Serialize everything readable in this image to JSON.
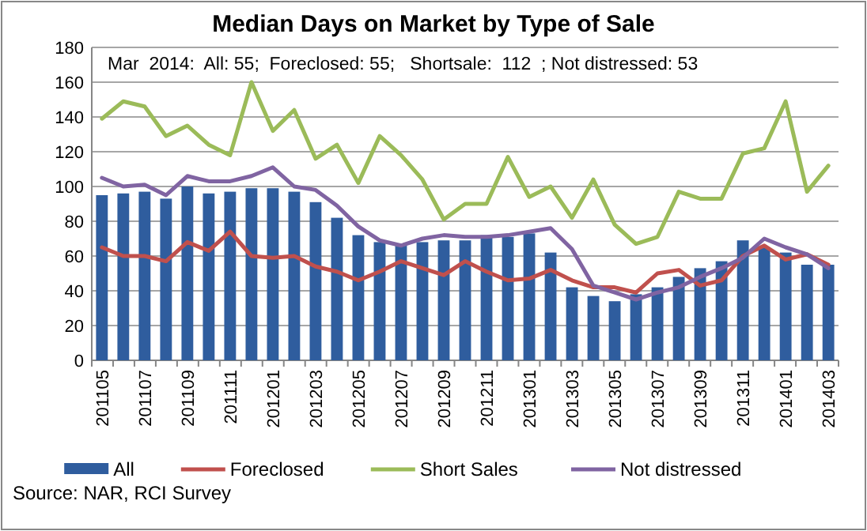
{
  "chart_data": {
    "type": "bar",
    "title": "Median Days on Market by Type of Sale",
    "categories": [
      "201105",
      null,
      "201107",
      null,
      "201109",
      null,
      "201111",
      null,
      "201201",
      null,
      "201203",
      null,
      "201205",
      null,
      "201207",
      null,
      "201209",
      null,
      "201211",
      null,
      "201301",
      null,
      "201303",
      null,
      "201305",
      null,
      "201307",
      null,
      "201309",
      null,
      "201311",
      null,
      "201401",
      null,
      "201403"
    ],
    "series": [
      {
        "name": "All",
        "color": "#2f5d9e",
        "values": [
          95,
          96,
          97,
          93,
          100,
          96,
          97,
          99,
          99,
          97,
          91,
          82,
          72,
          68,
          67,
          68,
          69,
          69,
          72,
          71,
          73,
          62,
          42,
          37,
          34,
          38,
          42,
          48,
          53,
          57,
          69,
          65,
          62,
          55,
          55
        ]
      },
      {
        "name": "Foreclosed",
        "type": "line",
        "color": "#c0504d",
        "values": [
          65,
          60,
          60,
          57,
          68,
          63,
          74,
          60,
          59,
          60,
          54,
          51,
          46,
          51,
          57,
          53,
          49,
          57,
          51,
          46,
          47,
          52,
          46,
          42,
          42,
          39,
          50,
          52,
          43,
          46,
          60,
          66,
          58,
          61,
          55
        ]
      },
      {
        "name": "Short Sales",
        "type": "line",
        "color": "#9bbb59",
        "values": [
          139,
          149,
          146,
          129,
          135,
          124,
          118,
          160,
          132,
          144,
          116,
          124,
          102,
          129,
          118,
          104,
          81,
          90,
          90,
          117,
          94,
          100,
          82,
          104,
          78,
          67,
          71,
          97,
          93,
          93,
          119,
          122,
          149,
          97,
          112
        ]
      },
      {
        "name": "Not distressed",
        "type": "line",
        "color": "#8064a2",
        "values": [
          105,
          100,
          101,
          95,
          106,
          103,
          103,
          106,
          111,
          100,
          98,
          89,
          77,
          69,
          66,
          70,
          72,
          71,
          71,
          72,
          74,
          76,
          64,
          43,
          39,
          35,
          39,
          42,
          48,
          53,
          59,
          70,
          65,
          61,
          53
        ]
      }
    ],
    "ylim": [
      0,
      180
    ],
    "yticks": [
      0,
      20,
      40,
      60,
      80,
      100,
      120,
      140,
      160,
      180
    ],
    "grid": "y",
    "legend": "bottom",
    "annotations": [
      "Mar  2014:  All: 55;  Foreclosed: 55;   Shortsale:  112  ; Not distressed: 53",
      "Source: NAR, RCI Survey"
    ]
  }
}
